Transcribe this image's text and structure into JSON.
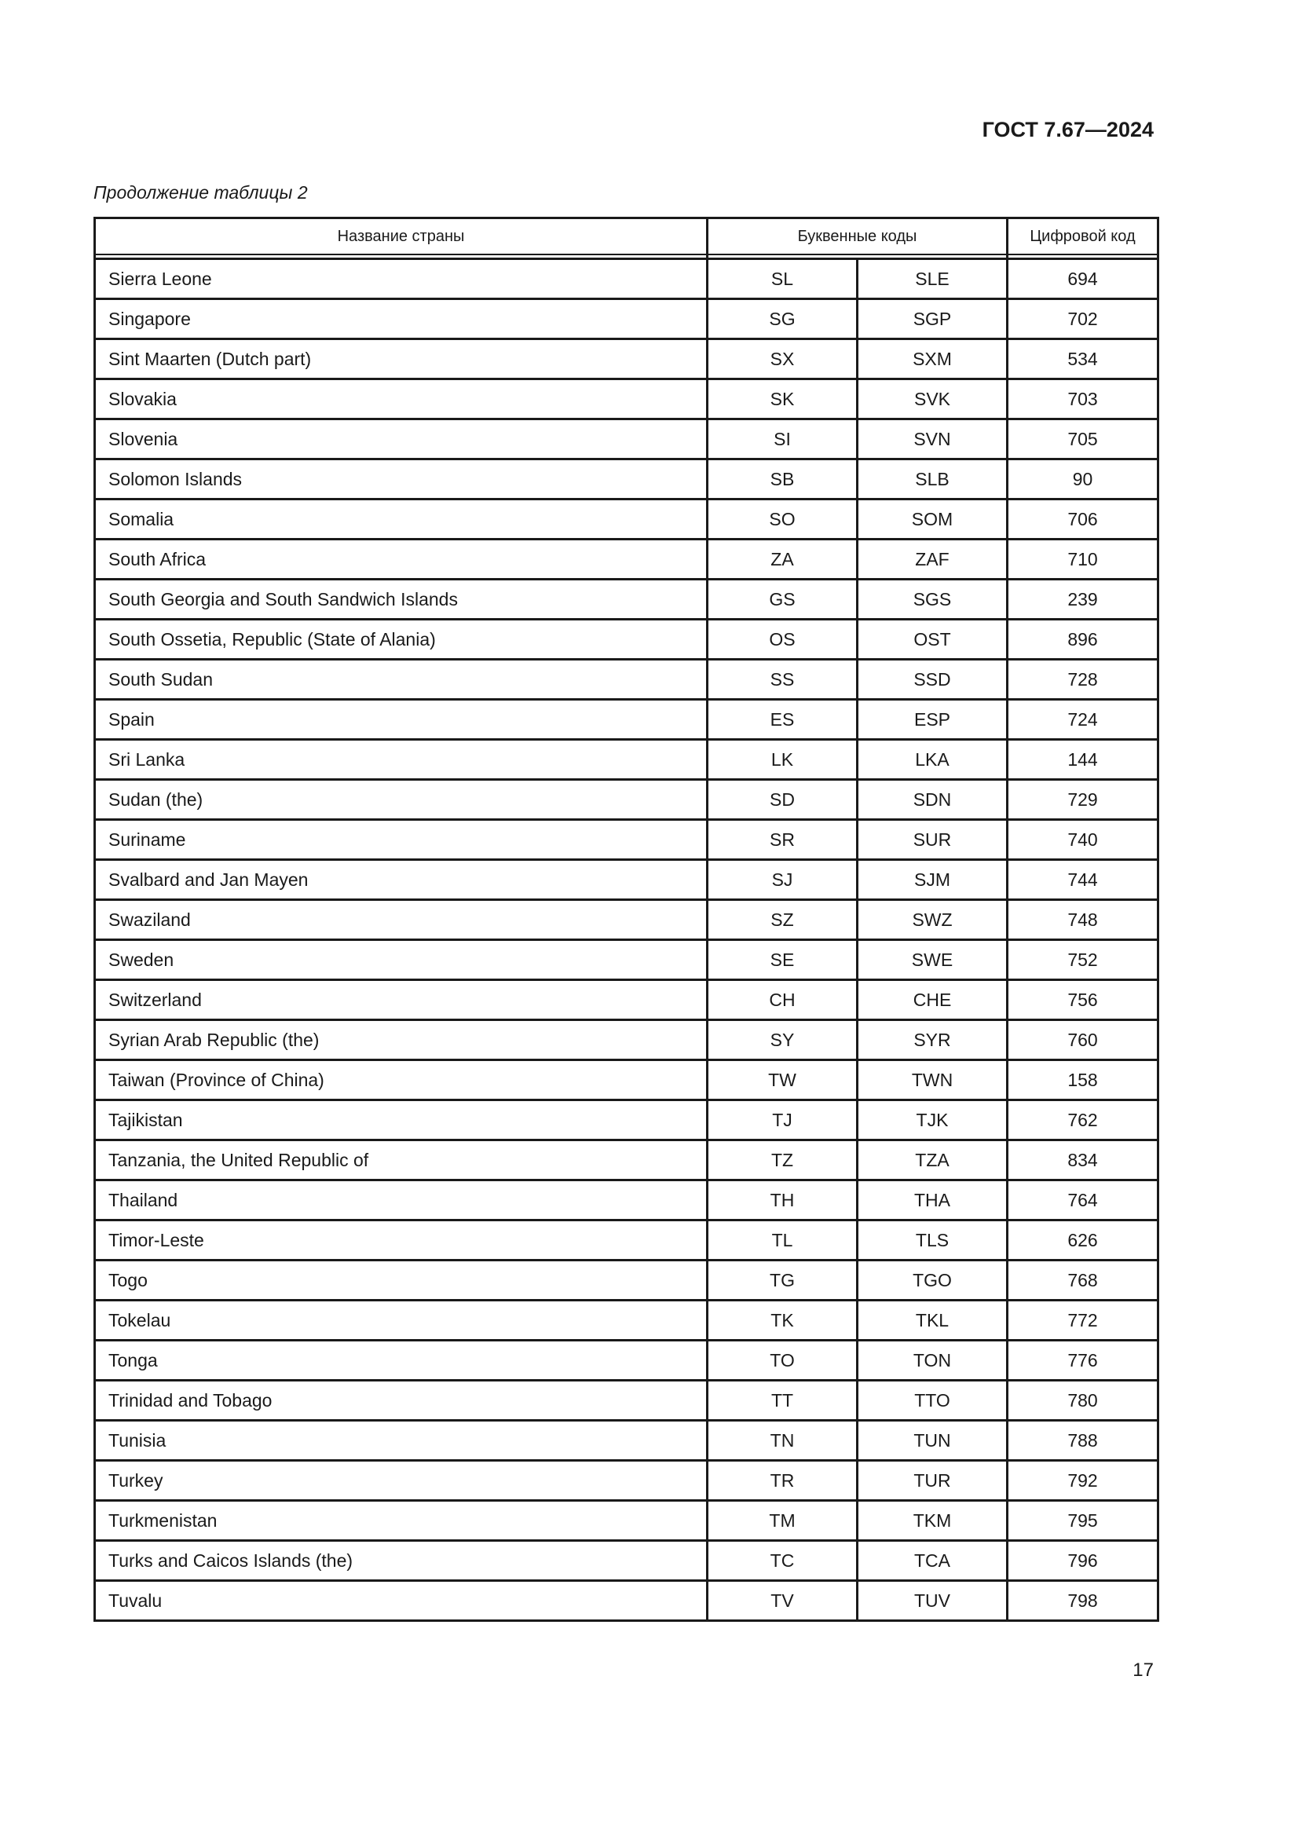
{
  "header": {
    "doc_code": "ГОСТ 7.67—2024"
  },
  "caption": "Продолжение таблицы 2",
  "table": {
    "columns": [
      "Название страны",
      "Буквенные коды",
      "Цифровой код"
    ],
    "rows": [
      [
        "Sierra Leone",
        "SL",
        "SLE",
        "694"
      ],
      [
        "Singapore",
        "SG",
        "SGP",
        "702"
      ],
      [
        "Sint Maarten (Dutch part)",
        "SX",
        "SXM",
        "534"
      ],
      [
        "Slovakia",
        "SK",
        "SVK",
        "703"
      ],
      [
        "Slovenia",
        "SI",
        "SVN",
        "705"
      ],
      [
        "Solomon Islands",
        "SB",
        "SLB",
        "90"
      ],
      [
        "Somalia",
        "SO",
        "SOM",
        "706"
      ],
      [
        "South Africa",
        "ZA",
        "ZAF",
        "710"
      ],
      [
        "South Georgia and South Sandwich Islands",
        "GS",
        "SGS",
        "239"
      ],
      [
        "South Ossetia, Republic (State of Alania)",
        "OS",
        "OST",
        "896"
      ],
      [
        "South Sudan",
        "SS",
        "SSD",
        "728"
      ],
      [
        "Spain",
        "ES",
        "ESP",
        "724"
      ],
      [
        "Sri Lanka",
        "LK",
        "LKA",
        "144"
      ],
      [
        "Sudan (the)",
        "SD",
        "SDN",
        "729"
      ],
      [
        "Suriname",
        "SR",
        "SUR",
        "740"
      ],
      [
        "Svalbard and Jan Mayen",
        "SJ",
        "SJM",
        "744"
      ],
      [
        "Swaziland",
        "SZ",
        "SWZ",
        "748"
      ],
      [
        "Sweden",
        "SE",
        "SWE",
        "752"
      ],
      [
        "Switzerland",
        "CH",
        "CHE",
        "756"
      ],
      [
        "Syrian Arab Republic (the)",
        "SY",
        "SYR",
        "760"
      ],
      [
        "Taiwan (Province of China)",
        "TW",
        "TWN",
        "158"
      ],
      [
        "Tajikistan",
        "TJ",
        "TJK",
        "762"
      ],
      [
        "Tanzania, the United Republic of",
        "TZ",
        "TZA",
        "834"
      ],
      [
        "Thailand",
        "TH",
        "THA",
        "764"
      ],
      [
        "Timor-Leste",
        "TL",
        "TLS",
        "626"
      ],
      [
        "Togo",
        "TG",
        "TGO",
        "768"
      ],
      [
        "Tokelau",
        "TK",
        "TKL",
        "772"
      ],
      [
        "Tonga",
        "TO",
        "TON",
        "776"
      ],
      [
        "Trinidad and Tobago",
        "TT",
        "TTO",
        "780"
      ],
      [
        "Tunisia",
        "TN",
        "TUN",
        "788"
      ],
      [
        "Turkey",
        "TR",
        "TUR",
        "792"
      ],
      [
        "Turkmenistan",
        "TM",
        "TKM",
        "795"
      ],
      [
        "Turks and Caicos Islands (the)",
        "TC",
        "TCA",
        "796"
      ],
      [
        "Tuvalu",
        "TV",
        "TUV",
        "798"
      ]
    ]
  },
  "page_number": "17"
}
